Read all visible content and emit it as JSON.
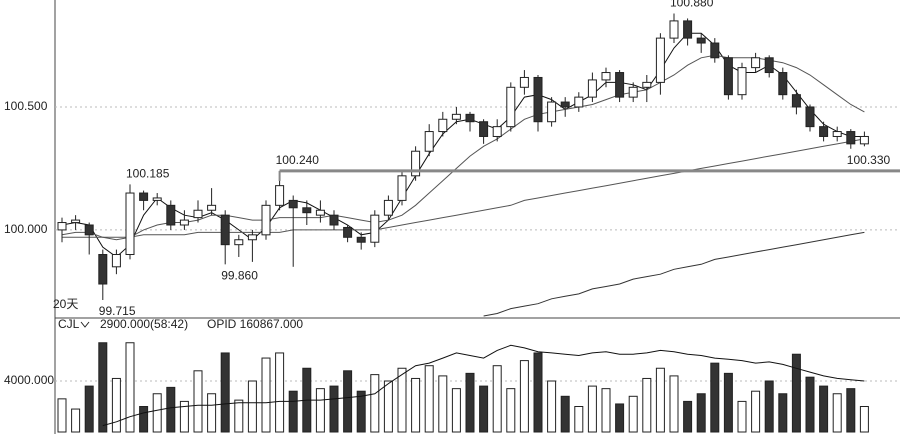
{
  "chart_data": {
    "type": "candlestick",
    "period_label": "20天",
    "ylim": [
      99.654,
      100.935
    ],
    "yticks": [
      {
        "value": 100.0,
        "label": "100.000"
      },
      {
        "value": 100.5,
        "label": "100.500"
      }
    ],
    "grid": true,
    "up_color": "#ffffff",
    "down_color": "#333333",
    "open": [
      100.0,
      100.03,
      100.02,
      99.9,
      99.85,
      99.9,
      100.15,
      100.12,
      100.1,
      100.02,
      100.05,
      100.08,
      100.06,
      99.94,
      99.96,
      99.98,
      100.1,
      100.12,
      100.09,
      100.06,
      100.06,
      100.01,
      99.97,
      99.95,
      100.06,
      100.12,
      100.22,
      100.32,
      100.4,
      100.45,
      100.47,
      100.44,
      100.38,
      100.42,
      100.58,
      100.62,
      100.44,
      100.52,
      100.5,
      100.54,
      100.61,
      100.64,
      100.54,
      100.58,
      100.6,
      100.78,
      100.85,
      100.78,
      100.76,
      100.7,
      100.55,
      100.66,
      100.7,
      100.64,
      100.55,
      100.5,
      100.42,
      100.38,
      100.4,
      100.35
    ],
    "high": [
      100.05,
      100.06,
      100.03,
      99.92,
      99.92,
      100.185,
      100.16,
      100.15,
      100.12,
      100.08,
      100.12,
      100.17,
      100.08,
      99.98,
      100.0,
      100.12,
      100.24,
      100.14,
      100.12,
      100.12,
      100.08,
      100.02,
      99.99,
      100.08,
      100.14,
      100.24,
      100.34,
      100.43,
      100.48,
      100.5,
      100.48,
      100.45,
      100.45,
      100.6,
      100.65,
      100.63,
      100.54,
      100.54,
      100.56,
      100.64,
      100.66,
      100.65,
      100.6,
      100.63,
      100.8,
      100.88,
      100.86,
      100.8,
      100.78,
      100.71,
      100.68,
      100.72,
      100.71,
      100.66,
      100.57,
      100.51,
      100.44,
      100.42,
      100.41,
      100.4
    ],
    "low": [
      99.95,
      100.0,
      99.9,
      99.715,
      99.82,
      99.88,
      100.08,
      100.1,
      100.0,
      100.0,
      100.03,
      100.06,
      99.86,
      99.89,
      99.87,
      99.96,
      100.08,
      99.85,
      100.02,
      100.03,
      100.0,
      99.95,
      99.92,
      99.93,
      100.04,
      100.1,
      100.2,
      100.3,
      100.38,
      100.43,
      100.4,
      100.35,
      100.36,
      100.4,
      100.55,
      100.4,
      100.42,
      100.46,
      100.48,
      100.52,
      100.58,
      100.52,
      100.52,
      100.52,
      100.55,
      100.76,
      100.75,
      100.72,
      100.68,
      100.53,
      100.53,
      100.64,
      100.62,
      100.53,
      100.47,
      100.4,
      100.36,
      100.36,
      100.33,
      100.34
    ],
    "close": [
      100.03,
      100.04,
      99.98,
      99.78,
      99.9,
      100.15,
      100.12,
      100.13,
      100.02,
      100.04,
      100.08,
      100.1,
      99.94,
      99.96,
      99.98,
      100.1,
      100.18,
      100.09,
      100.07,
      100.08,
      100.02,
      99.97,
      99.95,
      100.06,
      100.12,
      100.22,
      100.32,
      100.4,
      100.45,
      100.47,
      100.44,
      100.38,
      100.42,
      100.58,
      100.62,
      100.44,
      100.52,
      100.5,
      100.54,
      100.61,
      100.64,
      100.54,
      100.58,
      100.6,
      100.78,
      100.85,
      100.78,
      100.76,
      100.7,
      100.55,
      100.66,
      100.7,
      100.64,
      100.55,
      100.5,
      100.42,
      100.38,
      100.4,
      100.35,
      100.38
    ],
    "lines": [
      {
        "color": "#111111",
        "values": [
          100.02,
          100.03,
          100.02,
          99.93,
          99.89,
          99.94,
          100.06,
          100.13,
          100.09,
          100.06,
          100.05,
          100.07,
          100.04,
          100.0,
          99.96,
          100.01,
          100.09,
          100.12,
          100.11,
          100.08,
          100.05,
          100.02,
          99.98,
          99.99,
          100.04,
          100.13,
          100.22,
          100.31,
          100.39,
          100.44,
          100.45,
          100.43,
          100.41,
          100.46,
          100.54,
          100.55,
          100.53,
          100.49,
          100.52,
          100.55,
          100.6,
          100.6,
          100.59,
          100.57,
          100.65,
          100.74,
          100.8,
          100.8,
          100.75,
          100.67,
          100.64,
          100.64,
          100.67,
          100.63,
          100.56,
          100.49,
          100.43,
          100.4,
          100.38,
          100.38
        ]
      },
      {
        "color": "#555555",
        "values": [
          99.98,
          99.99,
          99.99,
          99.97,
          99.96,
          99.97,
          100.0,
          100.02,
          100.03,
          100.03,
          100.04,
          100.06,
          100.06,
          100.05,
          100.04,
          100.04,
          100.05,
          100.05,
          100.05,
          100.05,
          100.06,
          100.05,
          100.04,
          100.03,
          100.04,
          100.06,
          100.1,
          100.15,
          100.2,
          100.25,
          100.3,
          100.34,
          100.37,
          100.41,
          100.45,
          100.47,
          100.48,
          100.49,
          100.5,
          100.51,
          100.53,
          100.55,
          100.56,
          100.57,
          100.6,
          100.63,
          100.67,
          100.7,
          100.71,
          100.7,
          100.7,
          100.7,
          100.69,
          100.68,
          100.66,
          100.63,
          100.59,
          100.55,
          100.51,
          100.48
        ]
      },
      {
        "color": "#555555",
        "values": [
          99.97,
          99.97,
          99.97,
          99.97,
          99.97,
          99.97,
          99.98,
          99.98,
          99.98,
          99.98,
          99.99,
          99.99,
          99.99,
          99.99,
          99.99,
          99.99,
          99.99,
          100.0,
          100.0,
          100.0,
          100.0,
          100.0,
          100.0,
          100.0,
          100.01,
          100.02,
          100.03,
          100.04,
          100.05,
          100.06,
          100.07,
          100.08,
          100.09,
          100.1,
          100.12,
          100.13,
          100.14,
          100.15,
          100.16,
          100.17,
          100.18,
          100.19,
          100.2,
          100.21,
          100.22,
          100.23,
          100.24,
          100.25,
          100.26,
          100.27,
          100.28,
          100.29,
          100.3,
          100.31,
          100.32,
          100.33,
          100.34,
          100.35,
          100.36,
          100.37
        ]
      },
      {
        "color": "#333333",
        "values": [
          null,
          null,
          null,
          null,
          null,
          null,
          null,
          null,
          null,
          null,
          null,
          null,
          null,
          null,
          null,
          null,
          null,
          null,
          null,
          null,
          null,
          null,
          null,
          null,
          null,
          null,
          null,
          null,
          null,
          null,
          null,
          99.65,
          99.66,
          99.68,
          99.69,
          99.7,
          99.72,
          99.73,
          99.74,
          99.76,
          99.77,
          99.78,
          99.8,
          99.81,
          99.82,
          99.84,
          99.85,
          99.86,
          99.88,
          99.89,
          99.9,
          99.91,
          99.92,
          99.93,
          99.94,
          99.95,
          99.96,
          99.97,
          99.98,
          99.99
        ]
      }
    ],
    "annotations": [
      {
        "label": "100.185",
        "value": 100.185
      },
      {
        "label": "99.715",
        "value": 99.715
      },
      {
        "label": "99.860",
        "value": 99.86
      },
      {
        "label": "100.240",
        "value": 100.24
      },
      {
        "label": "100.880",
        "value": 100.88
      },
      {
        "label": "100.330",
        "value": 100.33
      }
    ],
    "volume": {
      "name": "CJL",
      "info": "2900.000(58:42)",
      "opid": "OPID 160867.000",
      "ylim": [
        0,
        8000
      ],
      "yticks": [
        {
          "value": 4000,
          "label": "4000.000"
        }
      ],
      "values": [
        2600,
        1800,
        3600,
        7000,
        4200,
        7000,
        2000,
        3000,
        3500,
        2400,
        4800,
        3000,
        6200,
        2500,
        4000,
        5800,
        6200,
        3200,
        5000,
        3400,
        3600,
        4800,
        3200,
        4500,
        4000,
        5000,
        4200,
        5200,
        4400,
        3400,
        4600,
        3600,
        5200,
        3400,
        5600,
        6200,
        4000,
        2800,
        2000,
        3600,
        3400,
        2200,
        2800,
        4200,
        5000,
        4400,
        2400,
        3000,
        5400,
        4600,
        2400,
        3200,
        4000,
        3000,
        6100,
        4300,
        3600,
        3000,
        3400,
        2000
      ],
      "line": [
        null,
        null,
        null,
        500,
        800,
        1200,
        1500,
        1700,
        1900,
        2000,
        2100,
        2100,
        2200,
        2300,
        2300,
        2300,
        2400,
        2400,
        2500,
        2500,
        2600,
        2700,
        2800,
        3000,
        3800,
        4500,
        5200,
        5400,
        5800,
        6200,
        6000,
        5800,
        6400,
        6800,
        6600,
        6300,
        6200,
        6100,
        6000,
        6200,
        6300,
        6100,
        6100,
        6200,
        6400,
        6300,
        6100,
        6000,
        5800,
        5700,
        5600,
        5400,
        5500,
        5300,
        5000,
        4700,
        4400,
        4200,
        4100,
        4000
      ]
    }
  }
}
